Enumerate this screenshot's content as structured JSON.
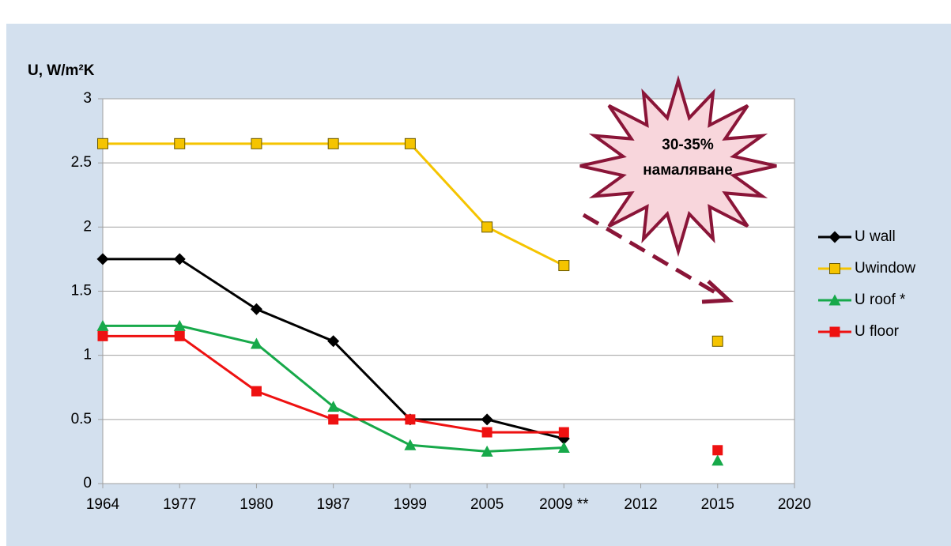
{
  "chart_data": {
    "type": "line",
    "y_axis_label": "U, W/m²K",
    "categories": [
      "1964",
      "1977",
      "1980",
      "1987",
      "1999",
      "2005",
      "2009 **",
      "2012",
      "2015",
      "2020"
    ],
    "series": [
      {
        "name": "U wall",
        "color": "#000000",
        "marker": "diamond",
        "values": [
          1.75,
          1.75,
          1.36,
          1.11,
          0.5,
          0.5,
          0.35,
          null,
          null,
          null
        ]
      },
      {
        "name": "Uwindow",
        "color": "#f5c400",
        "marker": "square-outline",
        "values": [
          2.65,
          2.65,
          2.65,
          2.65,
          2.65,
          2.0,
          1.7,
          null,
          1.11,
          null
        ]
      },
      {
        "name": "U roof *",
        "color": "#17a94a",
        "marker": "triangle",
        "values": [
          1.23,
          1.23,
          1.09,
          0.6,
          0.3,
          0.25,
          0.28,
          null,
          0.18,
          null
        ]
      },
      {
        "name": "U floor",
        "color": "#ee1111",
        "marker": "square",
        "values": [
          1.15,
          1.15,
          0.72,
          0.5,
          0.5,
          0.4,
          0.4,
          null,
          0.26,
          null
        ]
      }
    ],
    "annotation": [
      "30-35%",
      "намаляване"
    ],
    "ylim": [
      0,
      3
    ],
    "yticks": [
      0,
      0.5,
      1,
      1.5,
      2,
      2.5,
      3
    ],
    "grid": true,
    "legend": "right"
  }
}
